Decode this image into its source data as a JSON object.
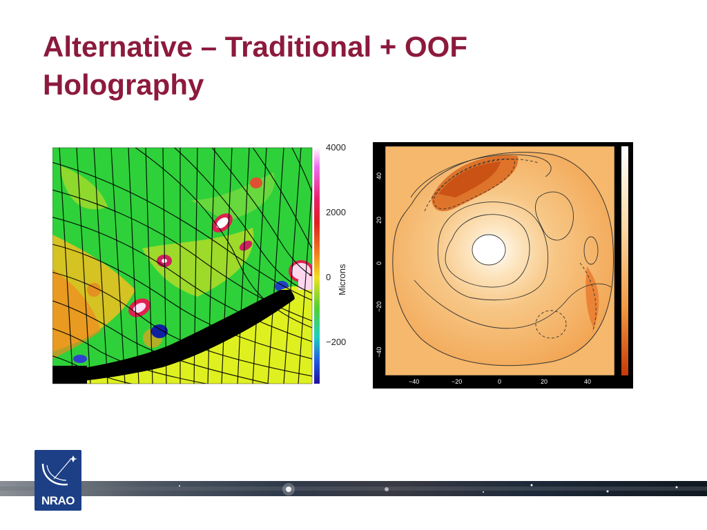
{
  "slide": {
    "title_line1": "Alternative – Traditional + OOF",
    "title_line2": "Holography"
  },
  "left_figure": {
    "colorbar_ticks": [
      "4000",
      "2000",
      "0",
      "−200"
    ],
    "colorbar_label": "Microns"
  },
  "right_figure": {
    "x_ticks": [
      "−40",
      "−20",
      "0",
      "20",
      "40"
    ],
    "y_ticks": [
      "40",
      "20",
      "0",
      "−20",
      "−40"
    ]
  },
  "logo": {
    "text": "NRAO"
  },
  "colors": {
    "title": "#8c1a3c",
    "logo_bg": "#1c3f86"
  }
}
